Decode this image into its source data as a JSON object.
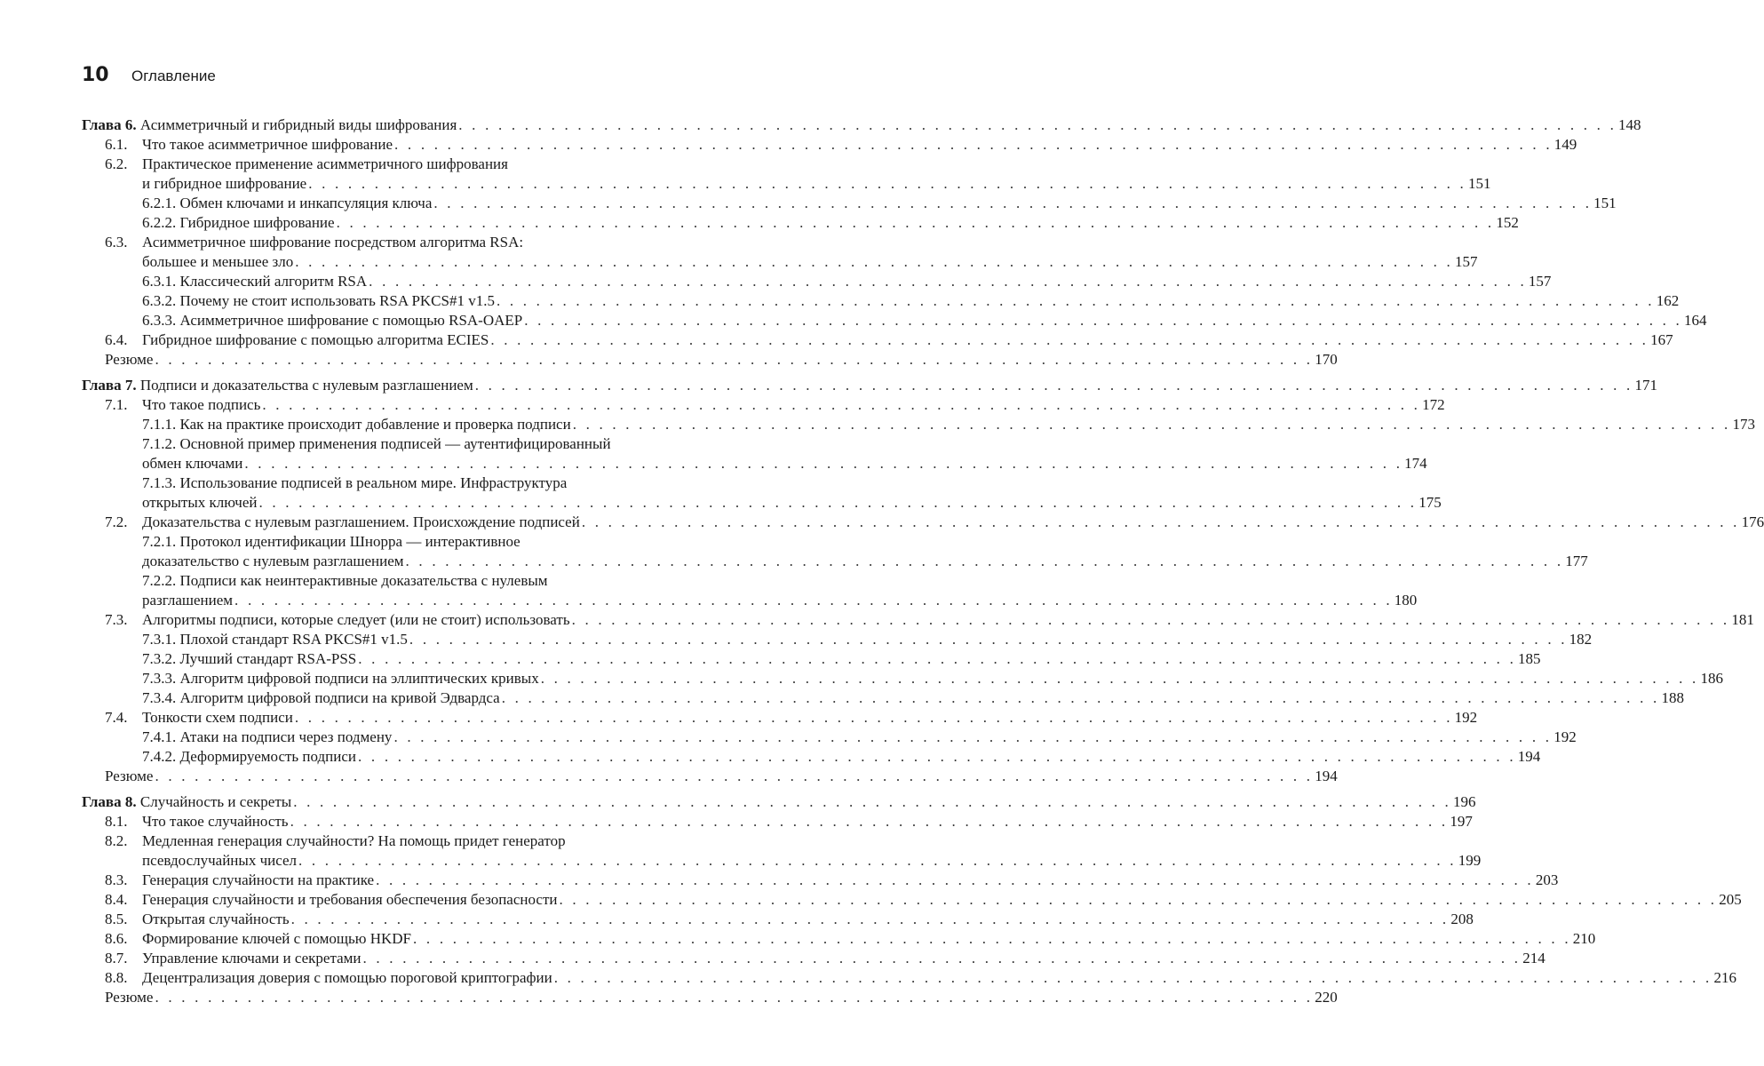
{
  "header": {
    "page_number": "10",
    "title": "Оглавление"
  },
  "toc": [
    {
      "level": "chapter",
      "label": "Глава 6.",
      "text": "Асимметричный и гибридный виды шифрования",
      "page": "148"
    },
    {
      "level": "section",
      "num": "6.1.",
      "text": "Что такое асимметричное шифрование",
      "page": "149"
    },
    {
      "level": "section",
      "num": "6.2.",
      "text": "Практическое применение асимметричного шифрования",
      "text_cont": "и гибридное шифрование",
      "page": "151"
    },
    {
      "level": "sub",
      "text": "6.2.1. Обмен ключами и инкапсуляция ключа",
      "page": "151"
    },
    {
      "level": "sub",
      "text": "6.2.2. Гибридное шифрование",
      "page": "152"
    },
    {
      "level": "section",
      "num": "6.3.",
      "text": "Асимметричное шифрование посредством алгоритма RSA:",
      "text_cont": "большее и меньшее зло",
      "page": "157"
    },
    {
      "level": "sub",
      "text": "6.3.1. Классический алгоритм RSA",
      "page": "157"
    },
    {
      "level": "sub",
      "text": "6.3.2. Почему не стоит использовать RSA PKCS#1 v1.5",
      "page": "162"
    },
    {
      "level": "sub",
      "text": "6.3.3. Асимметричное шифрование с помощью RSA-OAEP",
      "page": "164"
    },
    {
      "level": "section",
      "num": "6.4.",
      "text": "Гибридное шифрование с помощью алгоритма ECIES",
      "page": "167"
    },
    {
      "level": "summary",
      "text": "Резюме",
      "page": "170"
    },
    {
      "level": "chapter",
      "label": "Глава 7.",
      "text": "Подписи и доказательства с нулевым разглашением",
      "page": "171"
    },
    {
      "level": "section",
      "num": "7.1.",
      "text": "Что такое подпись",
      "page": "172"
    },
    {
      "level": "sub",
      "text": "7.1.1. Как на практике происходит добавление и проверка подписи",
      "page": "173"
    },
    {
      "level": "sub",
      "text": "7.1.2. Основной пример применения подписей — аутентифицированный",
      "text_cont": "обмен ключами",
      "page": "174"
    },
    {
      "level": "sub",
      "text": "7.1.3. Использование подписей в реальном мире. Инфраструктура",
      "text_cont": "открытых ключей",
      "page": "175"
    },
    {
      "level": "section",
      "num": "7.2.",
      "text": "Доказательства с нулевым разглашением. Происхождение подписей",
      "page": "176"
    },
    {
      "level": "sub",
      "text": "7.2.1. Протокол идентификации Шнорра — интерактивное",
      "text_cont": "доказательство с нулевым разглашением",
      "page": "177"
    },
    {
      "level": "sub",
      "text": "7.2.2. Подписи как неинтерактивные доказательства с нулевым",
      "text_cont": "разглашением",
      "page": "180"
    },
    {
      "level": "section",
      "num": "7.3.",
      "text": "Алгоритмы подписи, которые следует (или не стоит) использовать",
      "page": "181"
    },
    {
      "level": "sub",
      "text": "7.3.1. Плохой стандарт RSA PKCS#1 v1.5",
      "page": "182"
    },
    {
      "level": "sub",
      "text": "7.3.2. Лучший стандарт RSA-PSS",
      "page": "185"
    },
    {
      "level": "sub",
      "text": "7.3.3. Алгоритм цифровой подписи на эллиптических кривых",
      "page": "186"
    },
    {
      "level": "sub",
      "text": "7.3.4. Алгоритм цифровой подписи на кривой Эдвардса",
      "page": "188"
    },
    {
      "level": "section",
      "num": "7.4.",
      "text": "Тонкости схем подписи",
      "page": "192"
    },
    {
      "level": "sub",
      "text": "7.4.1. Атаки на подписи через подмену",
      "page": "192"
    },
    {
      "level": "sub",
      "text": "7.4.2. Деформируемость подписи",
      "page": "194"
    },
    {
      "level": "summary",
      "text": "Резюме",
      "page": "194"
    },
    {
      "level": "chapter",
      "label": "Глава 8.",
      "text": "Случайность и секреты",
      "page": "196"
    },
    {
      "level": "section",
      "num": "8.1.",
      "text": "Что такое случайность",
      "page": "197"
    },
    {
      "level": "section",
      "num": "8.2.",
      "text": "Медленная генерация случайности? На помощь придет генератор",
      "text_cont": "псевдослучайных чисел",
      "page": "199"
    },
    {
      "level": "section",
      "num": "8.3.",
      "text": "Генерация случайности на практике",
      "page": "203"
    },
    {
      "level": "section",
      "num": "8.4.",
      "text": "Генерация случайности и требования обеспечения безопасности",
      "page": "205"
    },
    {
      "level": "section",
      "num": "8.5.",
      "text": "Открытая случайность",
      "page": "208"
    },
    {
      "level": "section",
      "num": "8.6.",
      "text": "Формирование ключей с помощью HKDF",
      "page": "210"
    },
    {
      "level": "section",
      "num": "8.7.",
      "text": "Управление ключами и секретами",
      "page": "214"
    },
    {
      "level": "section",
      "num": "8.8.",
      "text": "Децентрализация доверия с помощью пороговой криптографии",
      "page": "216"
    },
    {
      "level": "summary",
      "text": "Резюме",
      "page": "220"
    }
  ]
}
